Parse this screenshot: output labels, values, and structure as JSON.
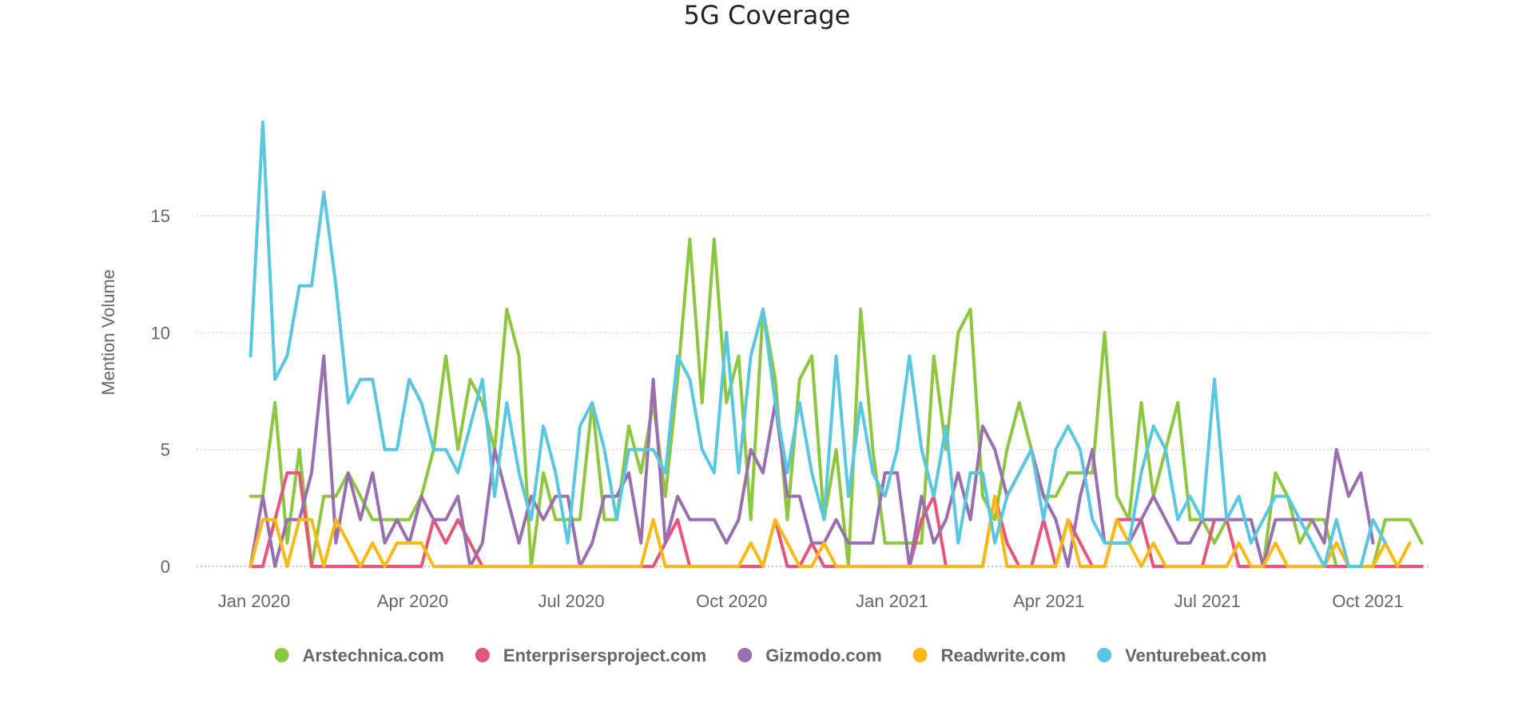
{
  "chart_data": {
    "type": "line",
    "title": "5G Coverage",
    "xlabel": "",
    "ylabel": "Mention Volume",
    "ylim": [
      0,
      19
    ],
    "y_ticks": [
      0,
      5,
      10,
      15
    ],
    "grid": true,
    "legend_position": "bottom",
    "x_ticks": [
      "Jan 2020",
      "Apr 2020",
      "Jul 2020",
      "Oct 2020",
      "Jan 2021",
      "Apr 2021",
      "Jul 2021",
      "Oct 2021"
    ],
    "x_start": "2019-12-30",
    "x_step_days": 7,
    "series": [
      {
        "name": "Arstechnica.com",
        "color": "#8dc63f",
        "values": [
          3,
          3,
          7,
          1,
          5,
          0,
          3,
          3,
          4,
          3,
          2,
          2,
          2,
          2,
          3,
          5,
          9,
          5,
          8,
          7,
          5,
          11,
          9,
          0,
          4,
          2,
          2,
          2,
          7,
          2,
          2,
          6,
          4,
          7,
          3,
          8,
          14,
          7,
          14,
          7,
          9,
          2,
          11,
          8,
          2,
          8,
          9,
          2,
          5,
          0,
          11,
          5,
          1,
          1,
          1,
          1,
          9,
          5,
          10,
          11,
          3,
          2,
          5,
          7,
          5,
          3,
          3,
          4,
          4,
          4,
          10,
          3,
          2,
          7,
          3,
          5,
          7,
          2,
          2,
          1,
          2,
          2,
          2,
          0,
          4,
          3,
          1,
          2,
          2,
          0,
          0,
          0,
          0,
          2,
          2,
          2,
          1
        ]
      },
      {
        "name": "Enterprisersproject.com",
        "color": "#e6567a",
        "values": [
          0,
          0,
          2,
          4,
          4,
          0,
          0,
          0,
          0,
          0,
          0,
          0,
          0,
          0,
          0,
          2,
          1,
          2,
          1,
          0,
          0,
          0,
          0,
          0,
          0,
          0,
          0,
          0,
          0,
          0,
          0,
          0,
          0,
          0,
          1,
          2,
          0,
          0,
          0,
          0,
          0,
          0,
          0,
          2,
          0,
          0,
          1,
          0,
          0,
          0,
          0,
          0,
          0,
          0,
          0,
          2,
          3,
          0,
          0,
          0,
          0,
          3,
          1,
          0,
          0,
          2,
          0,
          2,
          1,
          0,
          0,
          2,
          2,
          2,
          0,
          0,
          0,
          0,
          0,
          2,
          2,
          0,
          0,
          0,
          0,
          0,
          0,
          0,
          0,
          0,
          0,
          0,
          0,
          0,
          0,
          0,
          0
        ]
      },
      {
        "name": "Gizmodo.com",
        "color": "#9a6fb0",
        "values": [
          0,
          3,
          0,
          2,
          2,
          4,
          9,
          1,
          4,
          2,
          4,
          1,
          2,
          1,
          3,
          2,
          2,
          3,
          0,
          1,
          5,
          3,
          1,
          3,
          2,
          3,
          3,
          0,
          1,
          3,
          3,
          4,
          1,
          8,
          1,
          3,
          2,
          2,
          2,
          1,
          2,
          5,
          4,
          7,
          3,
          3,
          1,
          1,
          2,
          1,
          1,
          1,
          4,
          4,
          0,
          3,
          1,
          2,
          4,
          2,
          6,
          5,
          3,
          4,
          5,
          3,
          2,
          0,
          3,
          5,
          1,
          1,
          1,
          2,
          3,
          2,
          1,
          1,
          2,
          2,
          2,
          2,
          2,
          0,
          2,
          2,
          2,
          2,
          1,
          5,
          3,
          4,
          1
        ]
      },
      {
        "name": "Readwrite.com",
        "color": "#fdb913",
        "values": [
          0,
          2,
          2,
          0,
          2,
          2,
          0,
          2,
          1,
          0,
          1,
          0,
          1,
          1,
          1,
          0,
          0,
          0,
          0,
          0,
          0,
          0,
          0,
          0,
          0,
          0,
          0,
          0,
          0,
          0,
          0,
          0,
          0,
          2,
          0,
          0,
          0,
          0,
          0,
          0,
          0,
          1,
          0,
          2,
          1,
          0,
          0,
          1,
          0,
          0,
          0,
          0,
          0,
          0,
          0,
          0,
          0,
          0,
          0,
          0,
          0,
          3,
          0,
          0,
          0,
          0,
          0,
          2,
          0,
          0,
          0,
          2,
          1,
          0,
          1,
          0,
          0,
          0,
          0,
          0,
          0,
          1,
          0,
          0,
          1,
          0,
          0,
          0,
          0,
          1,
          0,
          0,
          0,
          1,
          0,
          1
        ]
      },
      {
        "name": "Venturebeat.com",
        "color": "#58c7df",
        "values": [
          9,
          19,
          8,
          9,
          12,
          12,
          16,
          12,
          7,
          8,
          8,
          5,
          5,
          8,
          7,
          5,
          5,
          4,
          6,
          8,
          3,
          7,
          4,
          2,
          6,
          4,
          1,
          6,
          7,
          5,
          2,
          5,
          5,
          5,
          4,
          9,
          8,
          5,
          4,
          10,
          4,
          9,
          11,
          7,
          4,
          7,
          4,
          2,
          9,
          3,
          7,
          4,
          3,
          5,
          9,
          5,
          3,
          6,
          1,
          4,
          4,
          1,
          3,
          4,
          5,
          2,
          5,
          6,
          5,
          2,
          1,
          1,
          1,
          4,
          6,
          5,
          2,
          3,
          2,
          8,
          2,
          3,
          1,
          2,
          3,
          3,
          2,
          1,
          0,
          2,
          0,
          0,
          2,
          1
        ]
      }
    ]
  }
}
